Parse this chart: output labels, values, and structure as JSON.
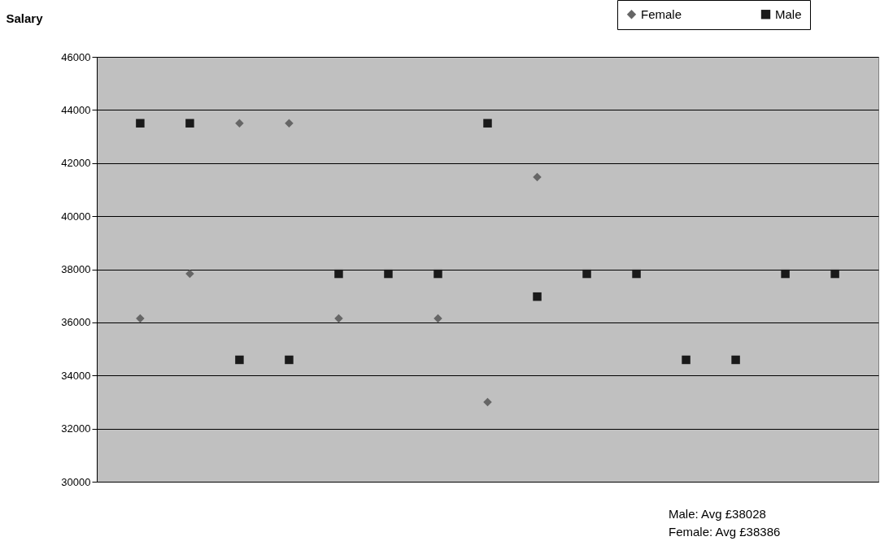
{
  "chart_data": {
    "type": "scatter",
    "ylabel": "Salary",
    "categories": [
      null,
      null,
      null,
      null,
      null,
      null,
      null,
      null,
      null,
      null,
      null,
      null,
      null,
      null,
      null
    ],
    "series": [
      {
        "name": "Female",
        "color": "#666666",
        "marker": "diamond",
        "values": [
          36150,
          37830,
          43500,
          43500,
          36150,
          null,
          36150,
          33000,
          41470,
          null,
          null,
          null,
          null,
          null,
          null
        ]
      },
      {
        "name": "Male",
        "color": "#1a1a1a",
        "marker": "square",
        "values": [
          43500,
          43500,
          34590,
          34590,
          37830,
          37830,
          37830,
          43500,
          36970,
          37830,
          37830,
          34590,
          34590,
          37830,
          37830
        ]
      }
    ],
    "ylim": [
      30000,
      46000
    ],
    "yticks": [
      30000,
      32000,
      34000,
      36000,
      38000,
      40000,
      42000,
      44000,
      46000
    ],
    "grid": "y",
    "legend": "top right",
    "tick_labels": "y",
    "annotations": [
      "Male: Avg £38028",
      "Female: Avg £38386"
    ]
  }
}
